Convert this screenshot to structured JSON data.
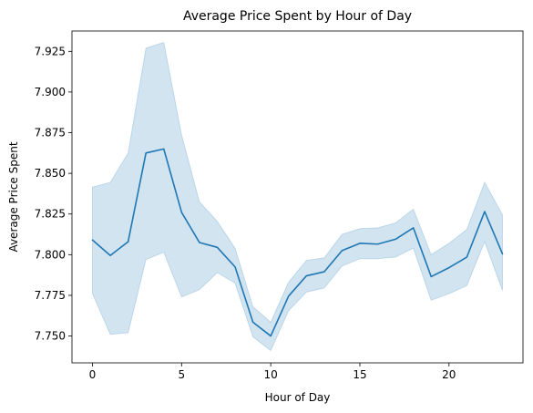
{
  "chart_data": {
    "type": "line",
    "title": "Average Price Spent by Hour of Day",
    "xlabel": "Hour of Day",
    "ylabel": "Average Price Spent",
    "xlim": [
      -1.15,
      24.15
    ],
    "ylim": [
      7.7335,
      7.9375
    ],
    "x_ticks": [
      0,
      5,
      10,
      15,
      20
    ],
    "x_tick_labels": [
      "0",
      "5",
      "10",
      "15",
      "20"
    ],
    "y_ticks": [
      7.75,
      7.775,
      7.8,
      7.825,
      7.85,
      7.875,
      7.9,
      7.925
    ],
    "y_tick_labels": [
      "7.750",
      "7.775",
      "7.800",
      "7.825",
      "7.850",
      "7.875",
      "7.900",
      "7.925"
    ],
    "grid": false,
    "line_color": "#1f77b4",
    "band_color": "#1f77b4",
    "series": [
      {
        "x": [
          0,
          1,
          2,
          3,
          4,
          5,
          6,
          7,
          8,
          9,
          10,
          11,
          12,
          13,
          14,
          15,
          16,
          17,
          18,
          19,
          20,
          21,
          22,
          23
        ],
        "values": [
          7.809,
          7.7995,
          7.808,
          7.8625,
          7.865,
          7.826,
          7.8075,
          7.8045,
          7.7925,
          7.7585,
          7.75,
          7.7745,
          7.787,
          7.7895,
          7.8025,
          7.807,
          7.8065,
          7.8095,
          7.8165,
          7.7865,
          7.792,
          7.7985,
          7.8265,
          7.8005
        ],
        "ci_lower": [
          7.776,
          7.751,
          7.752,
          7.797,
          7.8015,
          7.774,
          7.7785,
          7.789,
          7.7825,
          7.7495,
          7.741,
          7.7655,
          7.777,
          7.7795,
          7.793,
          7.7975,
          7.7975,
          7.7985,
          7.804,
          7.772,
          7.776,
          7.781,
          7.808,
          7.778
        ],
        "ci_upper": [
          7.8415,
          7.8445,
          7.8625,
          7.927,
          7.9305,
          7.8735,
          7.8325,
          7.8205,
          7.804,
          7.768,
          7.7585,
          7.783,
          7.7965,
          7.798,
          7.8125,
          7.816,
          7.8165,
          7.8195,
          7.828,
          7.8,
          7.807,
          7.8155,
          7.8445,
          7.8245
        ]
      }
    ]
  }
}
